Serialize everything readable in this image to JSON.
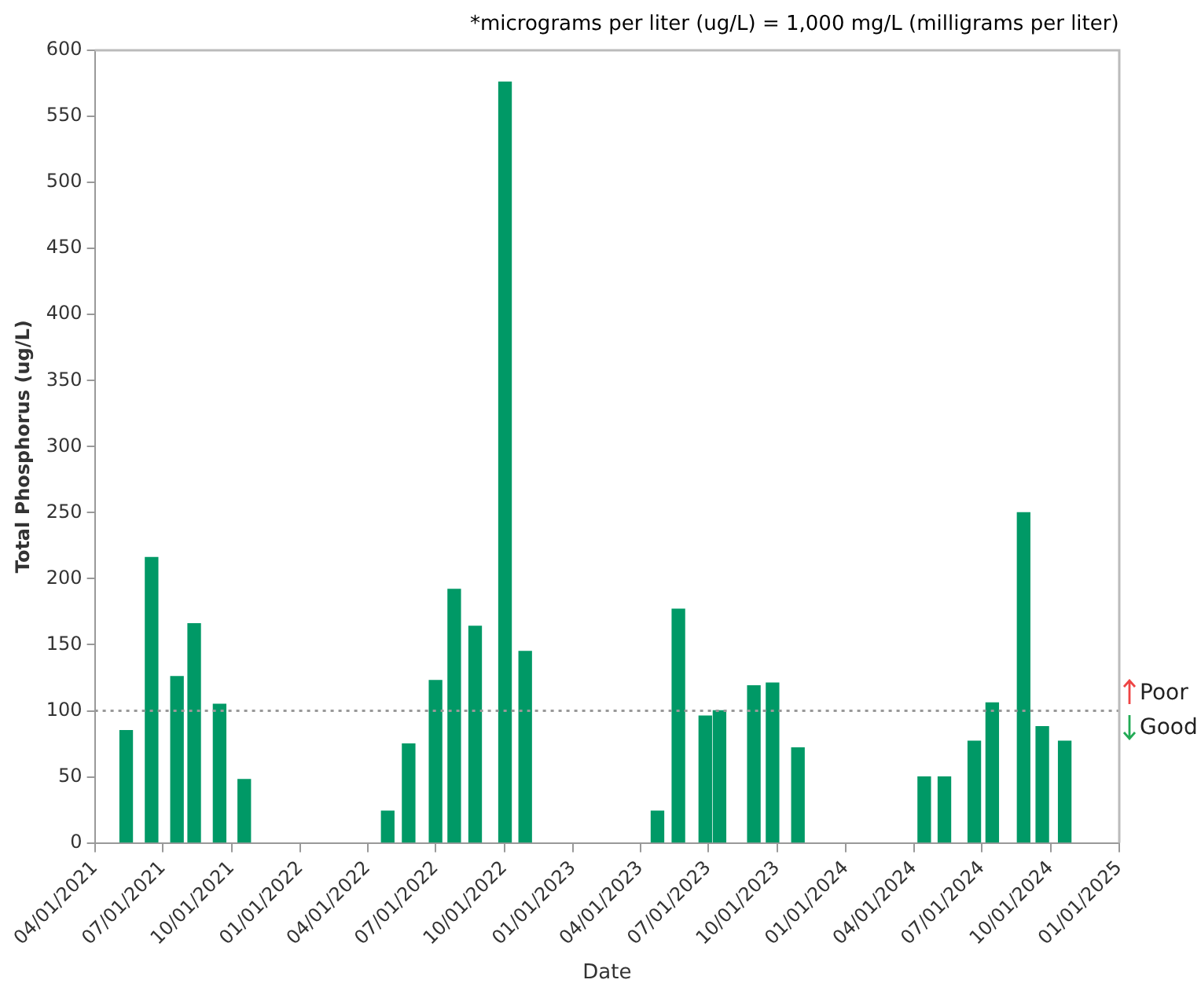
{
  "chart_data": {
    "type": "bar",
    "xlabel": "Date",
    "ylabel": "Total Phosphorus (ug/L)",
    "x": [
      "2021-05-13",
      "2021-06-16",
      "2021-07-20",
      "2021-08-12",
      "2021-09-15",
      "2021-10-18",
      "2022-04-28",
      "2022-05-26",
      "2022-07-01",
      "2022-07-26",
      "2022-08-23",
      "2022-10-02",
      "2022-10-29",
      "2023-04-24",
      "2023-05-22",
      "2023-06-27",
      "2023-07-16",
      "2023-08-31",
      "2023-09-25",
      "2023-10-29",
      "2024-04-15",
      "2024-05-12",
      "2024-06-21",
      "2024-07-15",
      "2024-08-26",
      "2024-09-20",
      "2024-10-20"
    ],
    "values": [
      85,
      216,
      126,
      166,
      105,
      48,
      24,
      75,
      123,
      192,
      164,
      576,
      145,
      24,
      177,
      96,
      100,
      119,
      121,
      72,
      50,
      50,
      77,
      106,
      250,
      88,
      77
    ],
    "color": "#009966",
    "xlim": [
      "2021-04-01",
      "2025-01-01"
    ],
    "xticks": [
      {
        "value": "2021-04-01",
        "label": "04/01/2021"
      },
      {
        "value": "2021-07-01",
        "label": "07/01/2021"
      },
      {
        "value": "2021-10-01",
        "label": "10/01/2021"
      },
      {
        "value": "2022-01-01",
        "label": "01/01/2022"
      },
      {
        "value": "2022-04-01",
        "label": "04/01/2022"
      },
      {
        "value": "2022-07-01",
        "label": "07/01/2022"
      },
      {
        "value": "2022-10-01",
        "label": "10/01/2022"
      },
      {
        "value": "2023-01-01",
        "label": "01/01/2023"
      },
      {
        "value": "2023-04-01",
        "label": "04/01/2023"
      },
      {
        "value": "2023-07-01",
        "label": "07/01/2023"
      },
      {
        "value": "2023-10-01",
        "label": "10/01/2023"
      },
      {
        "value": "2024-01-01",
        "label": "01/01/2024"
      },
      {
        "value": "2024-04-01",
        "label": "04/01/2024"
      },
      {
        "value": "2024-07-01",
        "label": "07/01/2024"
      },
      {
        "value": "2024-10-01",
        "label": "10/01/2024"
      },
      {
        "value": "2025-01-01",
        "label": "01/01/2025"
      }
    ],
    "ylim": [
      0,
      600
    ],
    "yticks": [
      0,
      50,
      100,
      150,
      200,
      250,
      300,
      350,
      400,
      450,
      500,
      550,
      600
    ],
    "grid": false,
    "legend": false,
    "ref_lines": [
      {
        "axis": "y",
        "value": 100,
        "color": "#999999",
        "line_style": "dotted"
      }
    ],
    "annotations": [
      "*micrograms per liter (ug/L) = 1,000 mg/L (milligrams per liter)",
      "Poor",
      "Good"
    ]
  }
}
